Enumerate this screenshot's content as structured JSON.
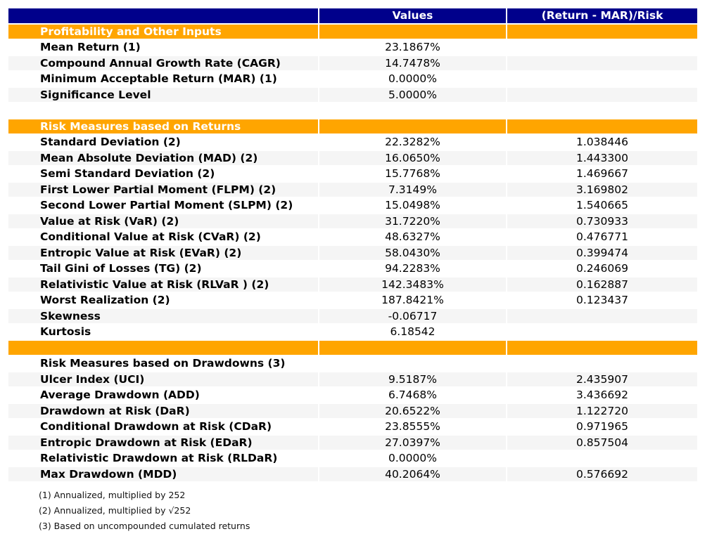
{
  "colors": {
    "header_bg": "#00008B",
    "section_bg": "#FFA500",
    "stripe_bg": "#F5F5F5",
    "row_bg": "#FFFFFF"
  },
  "chart_data": {
    "type": "table",
    "columns": [
      "",
      "Values",
      "(Return - MAR)/Risk"
    ],
    "rows": [
      {
        "type": "section",
        "label": "Profitability and Other Inputs",
        "value": "",
        "ratio": ""
      },
      {
        "type": "data",
        "label": "Mean Return (1)",
        "value": "23.1867%",
        "ratio": ""
      },
      {
        "type": "data",
        "label": "Compound Annual Growth Rate (CAGR)",
        "value": "14.7478%",
        "ratio": ""
      },
      {
        "type": "data",
        "label": "Minimum Acceptable Return (MAR) (1)",
        "value": "0.0000%",
        "ratio": ""
      },
      {
        "type": "data",
        "label": "Significance Level",
        "value": "5.0000%",
        "ratio": ""
      },
      {
        "type": "blank",
        "label": "",
        "value": "",
        "ratio": ""
      },
      {
        "type": "section",
        "label": "Risk Measures based on Returns",
        "value": "",
        "ratio": ""
      },
      {
        "type": "data",
        "label": "Standard Deviation (2)",
        "value": "22.3282%",
        "ratio": "1.038446"
      },
      {
        "type": "data",
        "label": "Mean Absolute Deviation (MAD) (2)",
        "value": "16.0650%",
        "ratio": "1.443300"
      },
      {
        "type": "data",
        "label": "Semi Standard Deviation (2)",
        "value": "15.7768%",
        "ratio": "1.469667"
      },
      {
        "type": "data",
        "label": "First Lower Partial Moment (FLPM) (2)",
        "value": "7.3149%",
        "ratio": "3.169802"
      },
      {
        "type": "data",
        "label": "Second Lower Partial Moment (SLPM) (2)",
        "value": "15.0498%",
        "ratio": "1.540665"
      },
      {
        "type": "data",
        "label": "Value at Risk (VaR) (2)",
        "value": "31.7220%",
        "ratio": "0.730933"
      },
      {
        "type": "data",
        "label": "Conditional Value at Risk (CVaR) (2)",
        "value": "48.6327%",
        "ratio": "0.476771"
      },
      {
        "type": "data",
        "label": "Entropic Value at Risk (EVaR) (2)",
        "value": "58.0430%",
        "ratio": "0.399474"
      },
      {
        "type": "data",
        "label": "Tail Gini of Losses (TG) (2)",
        "value": "94.2283%",
        "ratio": "0.246069"
      },
      {
        "type": "data",
        "label": "Relativistic Value at Risk (RLVaR ) (2)",
        "value": "142.3483%",
        "ratio": "0.162887"
      },
      {
        "type": "data",
        "label": "Worst Realization (2)",
        "value": "187.8421%",
        "ratio": "0.123437"
      },
      {
        "type": "data",
        "label": "Skewness",
        "value": "-0.06717",
        "ratio": ""
      },
      {
        "type": "data",
        "label": "Kurtosis",
        "value": "6.18542",
        "ratio": ""
      },
      {
        "type": "section-blank",
        "label": "",
        "value": "",
        "ratio": ""
      },
      {
        "type": "subheader",
        "label": "Risk Measures based on Drawdowns (3)",
        "value": "",
        "ratio": ""
      },
      {
        "type": "data",
        "label": "Ulcer Index (UCI)",
        "value": "9.5187%",
        "ratio": "2.435907"
      },
      {
        "type": "data",
        "label": "Average Drawdown (ADD)",
        "value": "6.7468%",
        "ratio": "3.436692"
      },
      {
        "type": "data",
        "label": "Drawdown at Risk (DaR)",
        "value": "20.6522%",
        "ratio": "1.122720"
      },
      {
        "type": "data",
        "label": "Conditional Drawdown at Risk (CDaR)",
        "value": "23.8555%",
        "ratio": "0.971965"
      },
      {
        "type": "data",
        "label": "Entropic Drawdown at Risk (EDaR)",
        "value": "27.0397%",
        "ratio": "0.857504"
      },
      {
        "type": "data",
        "label": "Relativistic Drawdown at Risk (RLDaR)",
        "value": "0.0000%",
        "ratio": ""
      },
      {
        "type": "data",
        "label": "Max Drawdown (MDD)",
        "value": "40.2064%",
        "ratio": "0.576692"
      }
    ]
  },
  "footnotes": [
    "(1) Annualized, multiplied by 252",
    "(2) Annualized, multiplied by √252",
    "(3) Based on uncompounded cumulated returns"
  ]
}
